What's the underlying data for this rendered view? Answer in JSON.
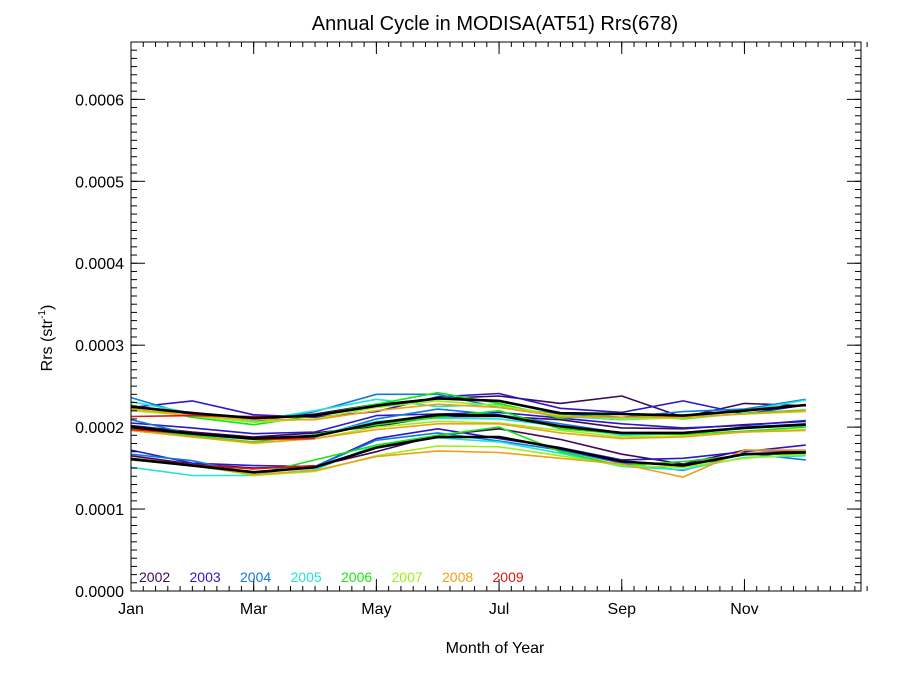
{
  "chart_data": {
    "type": "line",
    "title": "Annual Cycle in MODISA(AT51) Rrs(678)",
    "xlabel": "Month of Year",
    "ylabel_main": "Rrs (str",
    "ylabel_sup": "-1",
    "ylabel_close": ")",
    "xlim": [
      1,
      12.9
    ],
    "ylim": [
      0,
      0.00067
    ],
    "x_ticks": [
      {
        "value": 1,
        "label": "Jan"
      },
      {
        "value": 3,
        "label": "Mar"
      },
      {
        "value": 5,
        "label": "May"
      },
      {
        "value": 7,
        "label": "Jul"
      },
      {
        "value": 9,
        "label": "Sep"
      },
      {
        "value": 11,
        "label": "Nov"
      }
    ],
    "y_ticks": [
      {
        "value": 0.0,
        "label": "0.0000"
      },
      {
        "value": 0.0001,
        "label": "0.0001"
      },
      {
        "value": 0.0002,
        "label": "0.0002"
      },
      {
        "value": 0.0003,
        "label": "0.0003"
      },
      {
        "value": 0.0004,
        "label": "0.0004"
      },
      {
        "value": 0.0005,
        "label": "0.0005"
      },
      {
        "value": 0.0006,
        "label": "0.0006"
      }
    ],
    "y_minor_step": 1e-05,
    "x_minor_step": 0.2,
    "grid": false,
    "legend_placement": "bottom-left",
    "x": [
      1,
      2,
      3,
      4,
      5,
      6,
      7,
      8,
      9,
      10,
      11,
      12
    ],
    "series": [
      {
        "name": "2002",
        "color": "#3c0a5a",
        "lines": [
          [
            0.000224,
            0.000218,
            0.00021,
            0.000216,
            0.000228,
            0.000235,
            0.000238,
            0.000229,
            0.000238,
            0.000212,
            0.000229,
            0.000226
          ],
          [
            0.000202,
            0.000194,
            0.000188,
            0.000193,
            0.000201,
            0.000213,
            0.000213,
            0.000209,
            0.000199,
            0.000198,
            0.000203,
            0.000207
          ],
          [
            0.000165,
            0.000155,
            0.00015,
            0.000152,
            0.00017,
            0.00019,
            0.000198,
            0.000185,
            0.000167,
            0.000155,
            0.000172,
            0.00017
          ]
        ]
      },
      {
        "name": "2003",
        "color": "#2a18c8",
        "lines": [
          [
            0.000224,
            0.000232,
            0.000215,
            0.000212,
            0.000219,
            0.000237,
            0.000241,
            0.000223,
            0.000218,
            0.000232,
            0.000216,
            0.000227
          ],
          [
            0.000205,
            0.000199,
            0.000192,
            0.000194,
            0.000214,
            0.000216,
            0.000218,
            0.000211,
            0.000204,
            0.000199,
            0.000202,
            0.000208
          ],
          [
            0.000172,
            0.000156,
            0.000153,
            0.000152,
            0.000186,
            0.000198,
            0.000186,
            0.000175,
            0.00016,
            0.000162,
            0.00017,
            0.000178
          ]
        ]
      },
      {
        "name": "2004",
        "color": "#0f7ae0",
        "lines": [
          [
            0.000236,
            0.000214,
            0.000206,
            0.000219,
            0.00024,
            0.00024,
            0.000224,
            0.000216,
            0.000212,
            0.000219,
            0.000222,
            0.000234
          ],
          [
            0.000209,
            0.000191,
            0.000186,
            0.000188,
            0.00021,
            0.000222,
            0.000215,
            0.000204,
            0.000193,
            0.000192,
            0.0002,
            0.000204
          ],
          [
            0.000167,
            0.000159,
            0.000143,
            0.000152,
            0.000184,
            0.000193,
            0.000183,
            0.000172,
            0.000156,
            0.000147,
            0.000168,
            0.00016
          ]
        ]
      },
      {
        "name": "2005",
        "color": "#1ee6d2",
        "lines": [
          [
            0.000231,
            0.000217,
            0.000208,
            0.00022,
            0.000234,
            0.000225,
            0.000228,
            0.000213,
            0.000209,
            0.000212,
            0.00022,
            0.000233
          ],
          [
            0.000197,
            0.00019,
            0.000185,
            0.00019,
            0.000207,
            0.000211,
            0.00021,
            0.000201,
            0.00019,
            0.000192,
            0.000199,
            0.000202
          ],
          [
            0.000151,
            0.000141,
            0.000141,
            0.000148,
            0.000178,
            0.000187,
            0.000182,
            0.000168,
            0.000152,
            0.000148,
            0.000163,
            0.000165
          ]
        ]
      },
      {
        "name": "2006",
        "color": "#14e614",
        "lines": [
          [
            0.000227,
            0.000212,
            0.000203,
            0.000214,
            0.000228,
            0.000242,
            0.000229,
            0.000211,
            0.000216,
            0.00021,
            0.000217,
            0.000221
          ],
          [
            0.000199,
            0.000189,
            0.000182,
            0.000191,
            0.000203,
            0.000212,
            0.00022,
            0.000198,
            0.000192,
            0.000191,
            0.000195,
            0.0002
          ],
          [
            0.00016,
            0.000153,
            0.000142,
            0.00016,
            0.000178,
            0.00019,
            0.0002,
            0.00017,
            0.000153,
            0.000158,
            0.000166,
            0.000168
          ]
        ]
      },
      {
        "name": "2007",
        "color": "#9cf014",
        "lines": [
          [
            0.00022,
            0.000214,
            0.000206,
            0.00021,
            0.000224,
            0.000232,
            0.000226,
            0.000214,
            0.00021,
            0.000211,
            0.000216,
            0.000219
          ],
          [
            0.000196,
            0.000188,
            0.00018,
            0.000186,
            0.0002,
            0.000207,
            0.000205,
            0.000196,
            0.000188,
            0.000189,
            0.000194,
            0.000197
          ],
          [
            0.00016,
            0.000154,
            0.000141,
            0.000146,
            0.000165,
            0.000177,
            0.000176,
            0.000165,
            0.000153,
            0.000151,
            0.000162,
            0.000167
          ]
        ]
      },
      {
        "name": "2008",
        "color": "#f0a014",
        "lines": [
          [
            0.000222,
            0.000214,
            0.000209,
            0.000209,
            0.00022,
            0.000228,
            0.000224,
            0.000213,
            0.000212,
            0.000212,
            0.000216,
            0.00022
          ],
          [
            0.000196,
            0.000188,
            0.000181,
            0.000186,
            0.000197,
            0.000204,
            0.000204,
            0.000193,
            0.000186,
            0.000188,
            0.000194,
            0.000196
          ],
          [
            0.00016,
            0.000154,
            0.000142,
            0.000147,
            0.000164,
            0.000171,
            0.000169,
            0.000162,
            0.000155,
            0.000139,
            0.000172,
            0.000172
          ]
        ]
      },
      {
        "name": "2009",
        "color": "#e61414",
        "lines": [
          [
            0.000213,
            0.000214,
            0.000213,
            0.000213
          ],
          [
            0.000197,
            0.000192,
            0.000185,
            0.000186
          ],
          [
            0.000162,
            0.000154,
            0.000149,
            0.000153
          ]
        ]
      },
      {
        "name": "",
        "color": "#000000",
        "show_in_legend": false,
        "lines": [
          [
            0.000225,
            0.000217,
            0.000211,
            0.000214,
            0.000226,
            0.000235,
            0.000232,
            0.000217,
            0.000216,
            0.000214,
            0.00022,
            0.000227
          ],
          [
            0.0002,
            0.000192,
            0.000186,
            0.000189,
            0.000205,
            0.000215,
            0.000214,
            0.000201,
            0.000193,
            0.000193,
            0.000199,
            0.000203
          ],
          [
            0.000161,
            0.000153,
            0.000145,
            0.000151,
            0.000175,
            0.000188,
            0.000188,
            0.000174,
            0.000158,
            0.000153,
            0.000167,
            0.000169
          ]
        ]
      }
    ]
  }
}
